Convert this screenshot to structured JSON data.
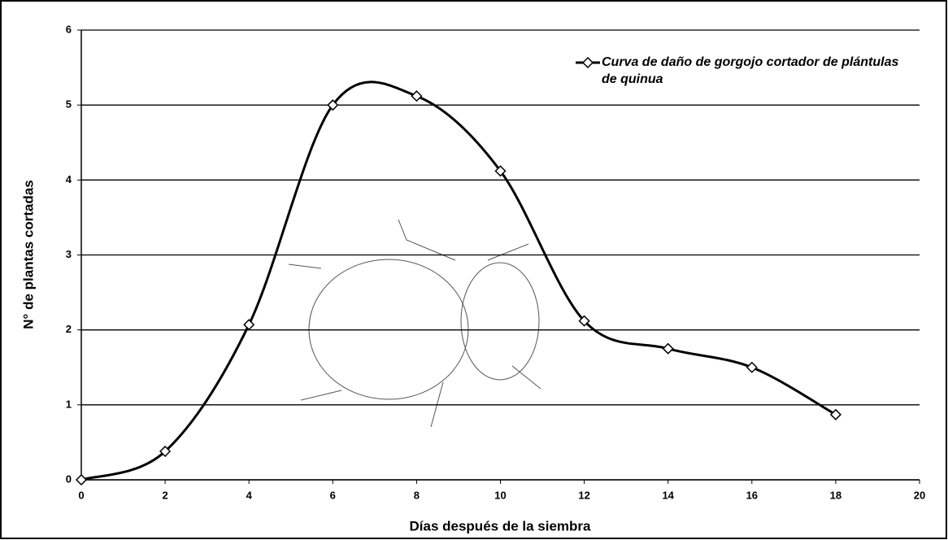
{
  "chart_data": {
    "type": "line",
    "x_label": "Días después de la siembra",
    "y_label": "N° de plantas cortadas",
    "x": [
      0,
      2,
      4,
      6,
      8,
      10,
      12,
      14,
      16,
      18
    ],
    "series": [
      {
        "name": "Curva de daño de gorgojo cortador de plántulas de quinua",
        "color": "#000000",
        "values": [
          0,
          0.38,
          2.07,
          5.0,
          5.12,
          4.12,
          2.12,
          1.75,
          1.5,
          0.87
        ]
      }
    ],
    "xlim": [
      0,
      20
    ],
    "xticks": [
      0,
      2,
      4,
      6,
      8,
      10,
      12,
      14,
      16,
      18,
      20
    ],
    "ylim": [
      0,
      6
    ],
    "yticks": [
      0,
      1,
      2,
      3,
      4,
      5,
      6
    ],
    "grid": true,
    "smooth": true,
    "legend": "upper right"
  }
}
